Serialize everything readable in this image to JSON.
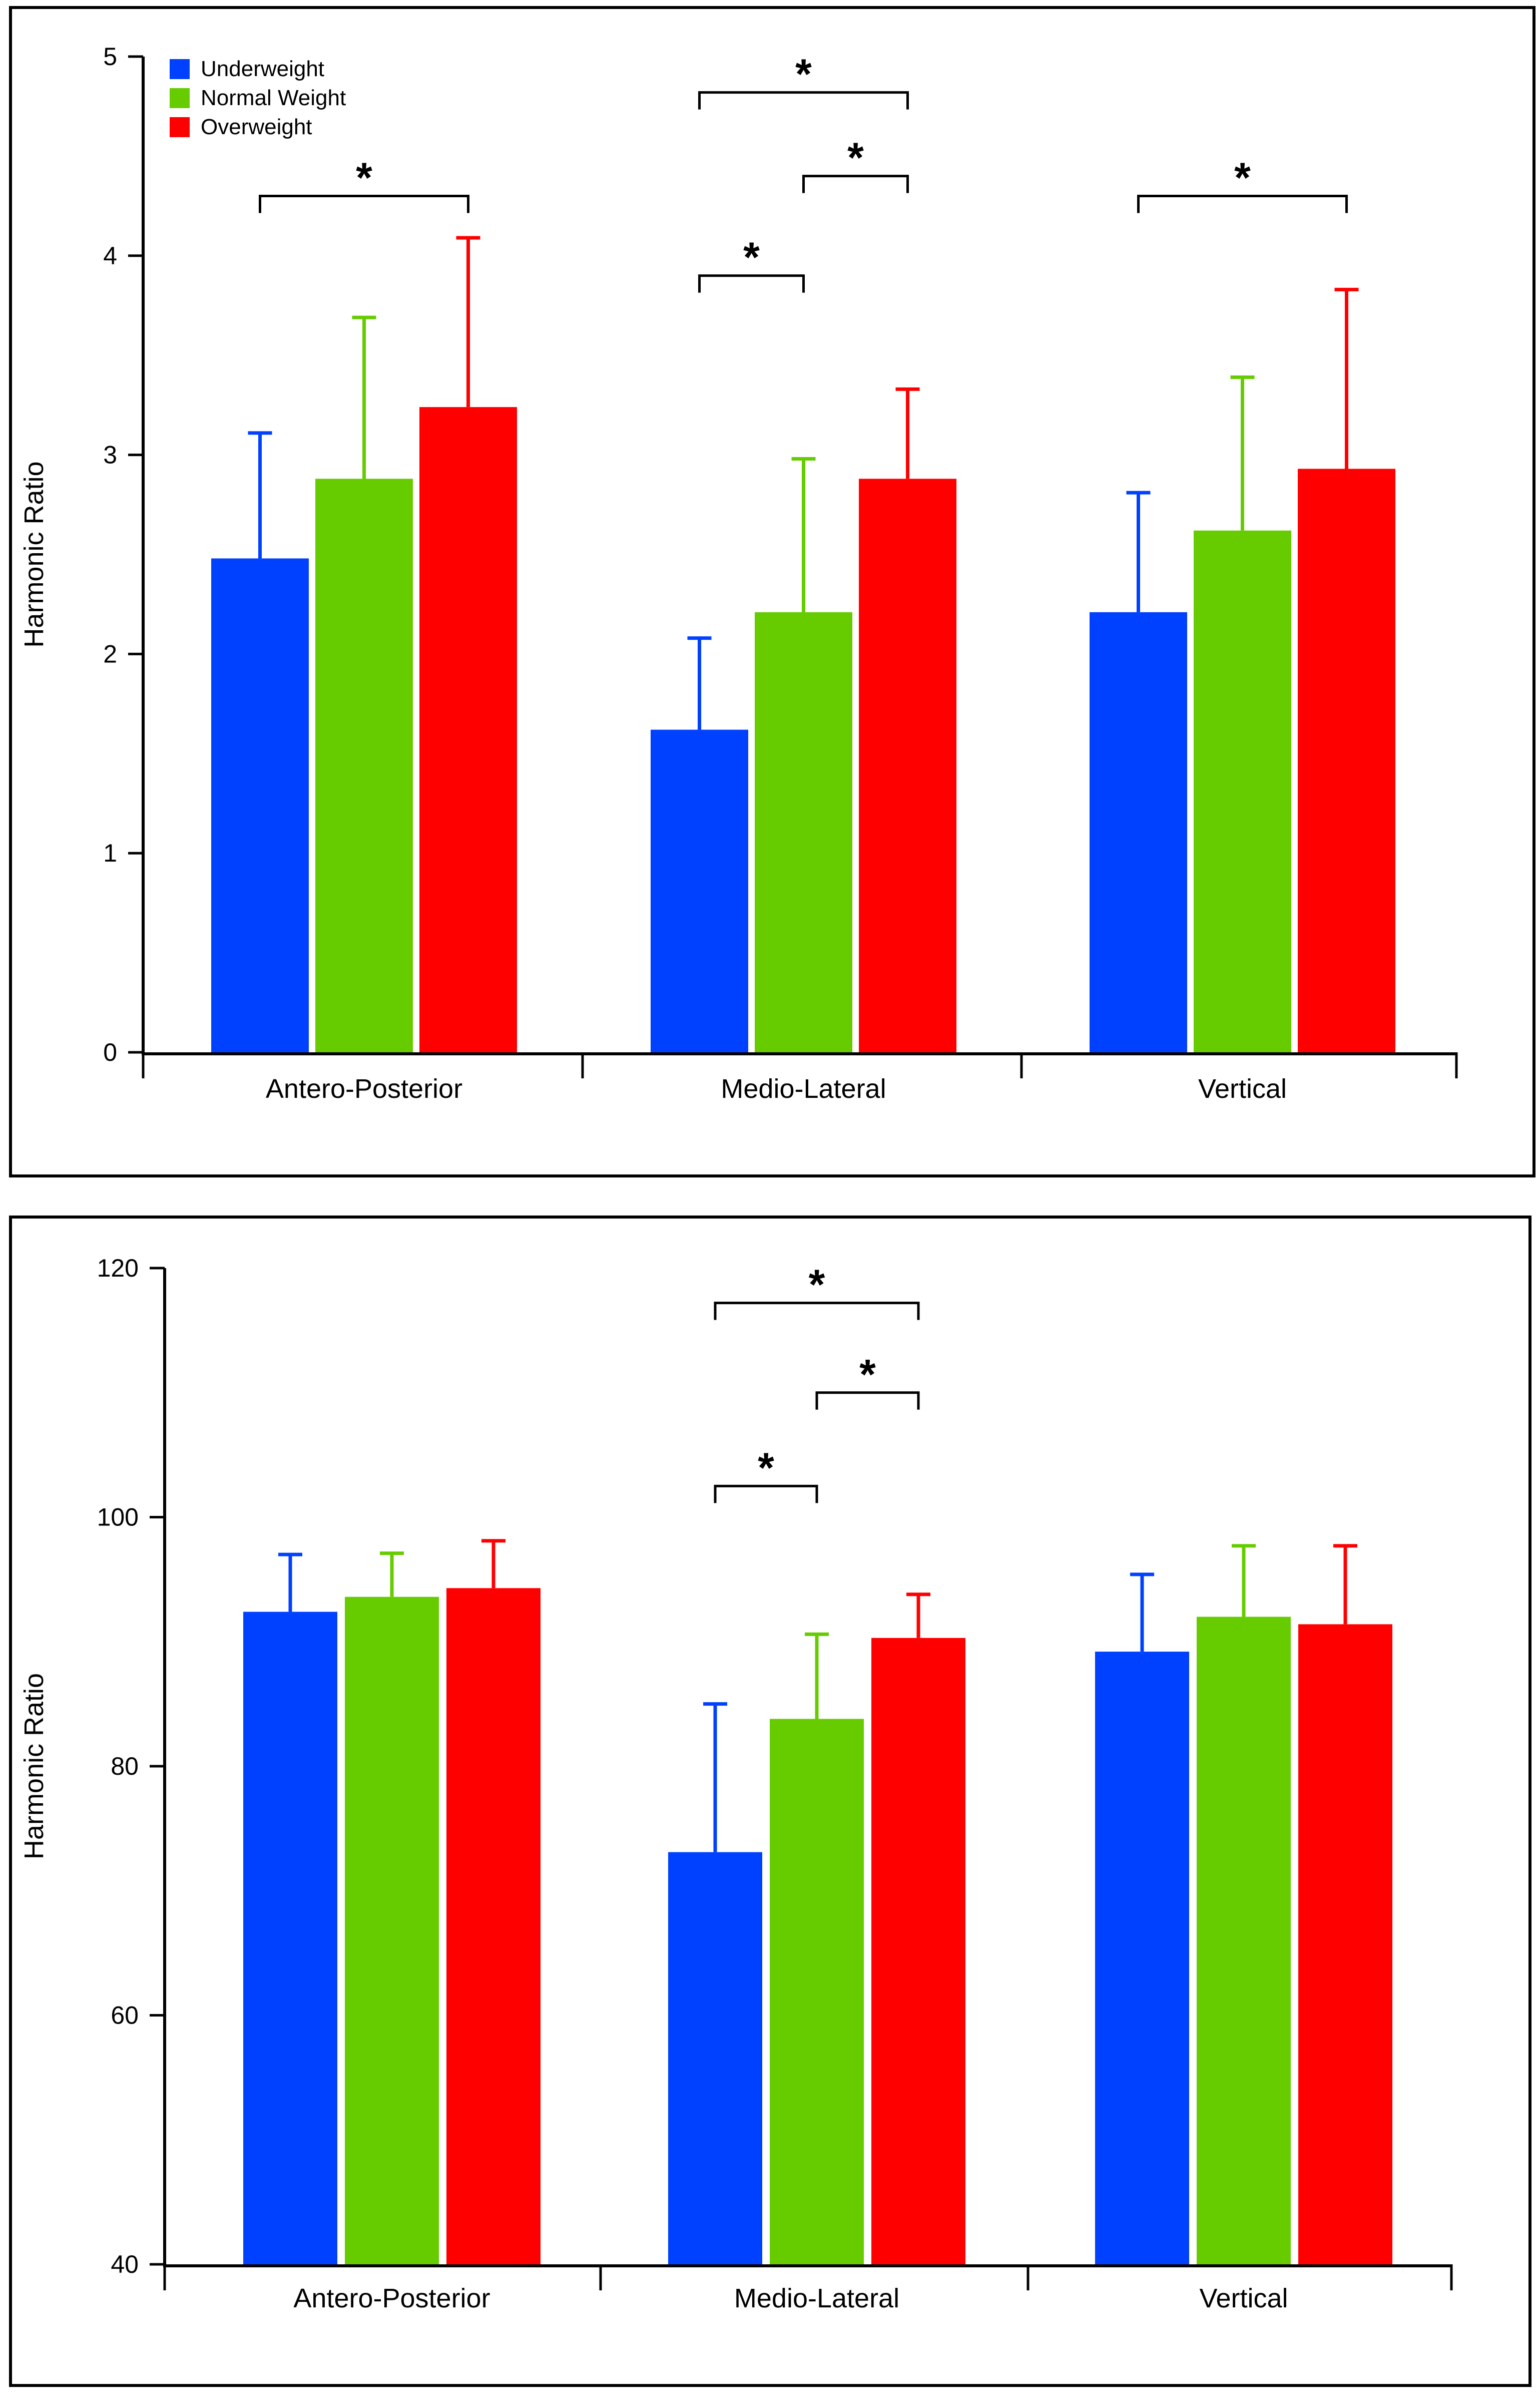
{
  "colors": {
    "underweight": "#0041ff",
    "normal_weight": "#66cc00",
    "overweight": "#ff0000",
    "axis": "#000000"
  },
  "chart_data": [
    {
      "type": "bar",
      "ylabel": "Harmonic Ratio",
      "xlabel": "",
      "ylim": [
        0,
        5
      ],
      "yticks": [
        0,
        1,
        2,
        3,
        4,
        5
      ],
      "grid": false,
      "legend": "top-left",
      "categories": [
        "Antero-Posterior",
        "Medio-Lateral",
        "Vertical"
      ],
      "series": [
        {
          "name": "Underweight",
          "color": "#0041ff",
          "values": [
            2.48,
            1.62,
            2.21
          ],
          "errors": [
            0.63,
            0.46,
            0.6
          ]
        },
        {
          "name": "Normal Weight",
          "color": "#66cc00",
          "values": [
            2.88,
            2.21,
            2.62
          ],
          "errors": [
            0.81,
            0.77,
            0.77
          ]
        },
        {
          "name": "Overweight",
          "color": "#ff0000",
          "values": [
            3.24,
            2.88,
            2.93
          ],
          "errors": [
            0.85,
            0.45,
            0.9
          ]
        }
      ],
      "significance": [
        {
          "category": 0,
          "from": 0,
          "to": 2,
          "level": 4.3,
          "label": "*"
        },
        {
          "category": 1,
          "from": 0,
          "to": 1,
          "level": 3.9,
          "label": "*"
        },
        {
          "category": 1,
          "from": 1,
          "to": 2,
          "level": 4.4,
          "label": "*"
        },
        {
          "category": 1,
          "from": 0,
          "to": 2,
          "level": 4.82,
          "label": "*"
        },
        {
          "category": 2,
          "from": 0,
          "to": 2,
          "level": 4.3,
          "label": "*"
        }
      ]
    },
    {
      "type": "bar",
      "ylabel": "Harmonic Ratio",
      "xlabel": "",
      "ylim": [
        40,
        120
      ],
      "yticks": [
        40,
        60,
        80,
        100,
        120
      ],
      "grid": false,
      "legend": "none",
      "categories": [
        "Antero-Posterior",
        "Medio-Lateral",
        "Vertical"
      ],
      "series": [
        {
          "name": "Underweight",
          "color": "#0041ff",
          "values": [
            92.4,
            73.1,
            89.2
          ],
          "errors": [
            4.6,
            11.9,
            6.2
          ]
        },
        {
          "name": "Normal Weight",
          "color": "#66cc00",
          "values": [
            93.6,
            83.8,
            92.0
          ],
          "errors": [
            3.5,
            6.8,
            5.7
          ]
        },
        {
          "name": "Overweight",
          "color": "#ff0000",
          "values": [
            94.3,
            90.3,
            91.4
          ],
          "errors": [
            3.8,
            3.5,
            6.3
          ]
        }
      ],
      "significance": [
        {
          "category": 1,
          "from": 0,
          "to": 1,
          "level": 102.5,
          "label": "*"
        },
        {
          "category": 1,
          "from": 1,
          "to": 2,
          "level": 110.0,
          "label": "*"
        },
        {
          "category": 1,
          "from": 0,
          "to": 2,
          "level": 117.2,
          "label": "*"
        }
      ]
    }
  ]
}
